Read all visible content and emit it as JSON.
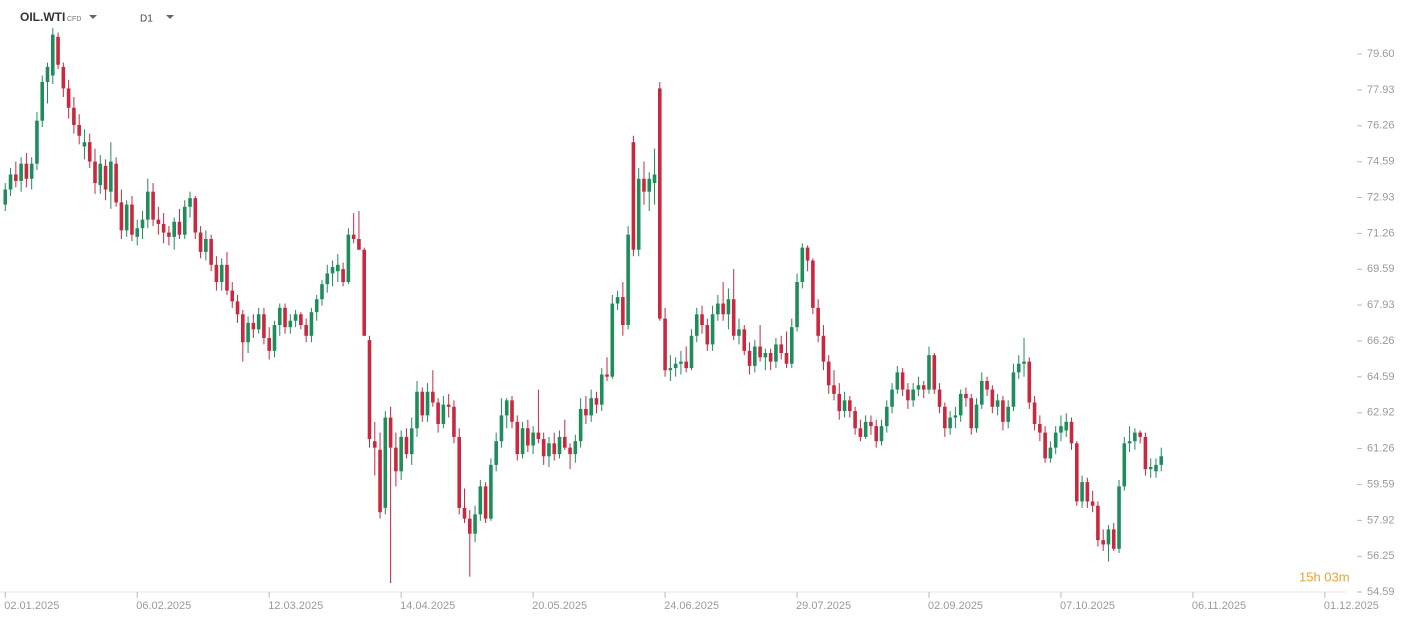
{
  "chart_data": {
    "type": "candlestick",
    "symbol": "OIL.WTI",
    "instrument": "CFD",
    "timeframe": "D1",
    "countdown": "15h 03m",
    "up_color": "#1f8c5c",
    "down_color": "#c9283e",
    "xlim": [
      -1,
      254
    ],
    "xticks": [
      {
        "value": 0,
        "label": "02.01.2025"
      },
      {
        "value": 25,
        "label": "06.02.2025"
      },
      {
        "value": 50,
        "label": "12.03.2025"
      },
      {
        "value": 75,
        "label": "14.04.2025"
      },
      {
        "value": 100,
        "label": "20.05.2025"
      },
      {
        "value": 125,
        "label": "24.06.2025"
      },
      {
        "value": 150,
        "label": "29.07.2025"
      },
      {
        "value": 175,
        "label": "02.09.2025"
      },
      {
        "value": 200,
        "label": "07.10.2025"
      },
      {
        "value": 225,
        "label": "06.11.2025"
      },
      {
        "value": 250,
        "label": "01.12.2025"
      }
    ],
    "ylim": [
      54.59,
      82.11
    ],
    "yticks": [
      {
        "value": 79.6,
        "label": "79.60"
      },
      77.93,
      76.26,
      74.59,
      72.93,
      71.26,
      69.59,
      67.93,
      66.26,
      64.59,
      62.92,
      61.26,
      59.59,
      57.92,
      56.25,
      54.59
    ],
    "ohlc": [
      [
        72.6,
        73.6,
        72.3,
        73.3
      ],
      [
        73.3,
        74.3,
        73.0,
        74.0
      ],
      [
        74.0,
        74.6,
        73.4,
        73.7
      ],
      [
        73.7,
        74.8,
        73.2,
        74.5
      ],
      [
        74.5,
        75.0,
        73.4,
        73.8
      ],
      [
        73.8,
        74.8,
        73.3,
        74.5
      ],
      [
        74.5,
        76.9,
        74.2,
        76.5
      ],
      [
        76.5,
        78.6,
        76.2,
        78.3
      ],
      [
        78.3,
        79.2,
        77.3,
        79.0
      ],
      [
        78.6,
        80.8,
        78.2,
        80.5
      ],
      [
        80.4,
        80.6,
        78.9,
        79.1
      ],
      [
        79.0,
        79.2,
        77.6,
        78.0
      ],
      [
        78.0,
        78.4,
        76.6,
        77.1
      ],
      [
        77.1,
        77.6,
        75.9,
        76.3
      ],
      [
        76.3,
        76.8,
        75.4,
        75.8
      ],
      [
        75.3,
        76.1,
        74.7,
        75.5
      ],
      [
        75.5,
        75.9,
        74.3,
        74.6
      ],
      [
        74.6,
        75.2,
        73.1,
        73.6
      ],
      [
        73.5,
        74.9,
        73.1,
        74.5
      ],
      [
        74.4,
        74.7,
        72.8,
        73.3
      ],
      [
        73.2,
        75.5,
        72.4,
        74.6
      ],
      [
        74.5,
        74.8,
        72.5,
        72.7
      ],
      [
        72.7,
        73.3,
        71.0,
        71.4
      ],
      [
        71.4,
        72.8,
        71.1,
        72.6
      ],
      [
        72.6,
        73.0,
        70.9,
        71.2
      ],
      [
        71.1,
        71.9,
        70.7,
        71.5
      ],
      [
        71.5,
        72.3,
        71.0,
        71.9
      ],
      [
        71.9,
        73.8,
        71.5,
        73.2
      ],
      [
        73.2,
        73.6,
        71.6,
        71.9
      ],
      [
        71.9,
        72.5,
        71.2,
        71.7
      ],
      [
        71.7,
        72.2,
        70.8,
        71.3
      ],
      [
        71.3,
        71.6,
        70.7,
        71.1
      ],
      [
        71.1,
        72.0,
        70.5,
        71.8
      ],
      [
        71.8,
        72.4,
        71.0,
        71.2
      ],
      [
        71.2,
        72.8,
        71.0,
        72.5
      ],
      [
        72.5,
        73.2,
        72.0,
        72.9
      ],
      [
        72.9,
        73.0,
        71.0,
        71.3
      ],
      [
        71.3,
        71.6,
        70.1,
        70.4
      ],
      [
        70.4,
        71.4,
        70.0,
        71.0
      ],
      [
        71.0,
        71.2,
        69.5,
        69.8
      ],
      [
        69.8,
        70.2,
        68.6,
        69.0
      ],
      [
        69.0,
        70.1,
        68.6,
        69.8
      ],
      [
        69.8,
        70.4,
        68.4,
        68.6
      ],
      [
        68.6,
        69.0,
        67.8,
        68.1
      ],
      [
        68.1,
        68.4,
        67.1,
        67.5
      ],
      [
        67.5,
        67.7,
        65.3,
        66.2
      ],
      [
        66.2,
        67.4,
        65.7,
        67.1
      ],
      [
        67.1,
        67.5,
        66.4,
        66.8
      ],
      [
        66.8,
        67.8,
        66.6,
        67.5
      ],
      [
        67.5,
        67.8,
        66.1,
        66.4
      ],
      [
        66.4,
        66.9,
        65.4,
        65.8
      ],
      [
        65.8,
        67.2,
        65.5,
        67.0
      ],
      [
        67.0,
        68.0,
        66.5,
        67.8
      ],
      [
        67.8,
        68.0,
        66.6,
        66.9
      ],
      [
        66.9,
        67.5,
        66.6,
        67.2
      ],
      [
        67.2,
        67.7,
        66.9,
        67.5
      ],
      [
        67.5,
        67.6,
        66.8,
        67.0
      ],
      [
        67.0,
        67.3,
        66.2,
        66.5
      ],
      [
        66.5,
        67.8,
        66.2,
        67.6
      ],
      [
        67.6,
        68.4,
        67.2,
        68.2
      ],
      [
        68.2,
        69.1,
        67.9,
        68.9
      ],
      [
        68.9,
        69.8,
        68.5,
        69.4
      ],
      [
        69.4,
        70.0,
        68.8,
        69.7
      ],
      [
        69.5,
        70.3,
        69.0,
        69.8
      ],
      [
        69.6,
        69.9,
        68.8,
        69.0
      ],
      [
        69.0,
        71.5,
        68.9,
        71.2
      ],
      [
        71.2,
        72.2,
        70.8,
        71.0
      ],
      [
        71.0,
        72.3,
        70.5,
        70.5
      ],
      [
        70.5,
        70.6,
        66.5,
        66.5
      ],
      [
        66.3,
        66.5,
        61.3,
        61.7
      ],
      [
        61.6,
        62.5,
        60.0,
        61.3
      ],
      [
        61.2,
        62.0,
        58.0,
        58.3
      ],
      [
        58.5,
        63.0,
        58.2,
        62.7
      ],
      [
        62.7,
        63.2,
        55.0,
        61.3
      ],
      [
        61.3,
        62.0,
        59.5,
        60.2
      ],
      [
        60.2,
        62.1,
        59.8,
        61.8
      ],
      [
        61.8,
        62.2,
        60.8,
        61.0
      ],
      [
        61.0,
        62.7,
        60.5,
        62.2
      ],
      [
        62.2,
        64.4,
        61.8,
        63.9
      ],
      [
        63.9,
        64.1,
        62.5,
        62.8
      ],
      [
        62.8,
        64.3,
        62.5,
        63.9
      ],
      [
        63.9,
        64.9,
        63.2,
        63.4
      ],
      [
        63.4,
        63.6,
        62.0,
        62.4
      ],
      [
        62.4,
        63.7,
        62.2,
        63.3
      ],
      [
        63.3,
        63.8,
        62.7,
        63.2
      ],
      [
        63.2,
        63.5,
        61.5,
        61.8
      ],
      [
        61.8,
        62.2,
        58.2,
        58.5
      ],
      [
        58.5,
        59.4,
        57.8,
        58.0
      ],
      [
        58.0,
        58.4,
        55.3,
        57.3
      ],
      [
        57.3,
        58.6,
        56.9,
        58.2
      ],
      [
        58.2,
        59.8,
        57.9,
        59.5
      ],
      [
        59.5,
        59.7,
        57.8,
        58.0
      ],
      [
        58.0,
        60.8,
        57.9,
        60.5
      ],
      [
        60.5,
        62.0,
        60.2,
        61.6
      ],
      [
        61.6,
        63.6,
        61.3,
        62.8
      ],
      [
        62.8,
        63.6,
        62.2,
        63.5
      ],
      [
        63.5,
        63.7,
        62.2,
        62.5
      ],
      [
        62.5,
        62.8,
        60.7,
        61.0
      ],
      [
        61.0,
        62.5,
        60.8,
        62.2
      ],
      [
        62.2,
        62.6,
        61.1,
        61.4
      ],
      [
        61.4,
        62.3,
        61.0,
        62.0
      ],
      [
        62.0,
        64.0,
        61.5,
        61.7
      ],
      [
        61.7,
        62.0,
        60.5,
        60.9
      ],
      [
        60.9,
        61.8,
        60.4,
        61.5
      ],
      [
        61.5,
        62.0,
        60.7,
        61.0
      ],
      [
        61.0,
        62.1,
        60.8,
        61.8
      ],
      [
        61.8,
        62.6,
        61.2,
        61.3
      ],
      [
        61.3,
        61.5,
        60.3,
        61.0
      ],
      [
        61.0,
        61.9,
        60.6,
        61.6
      ],
      [
        61.6,
        63.6,
        61.3,
        63.1
      ],
      [
        63.1,
        63.7,
        62.4,
        62.8
      ],
      [
        62.8,
        64.0,
        62.5,
        63.6
      ],
      [
        63.6,
        63.9,
        62.9,
        63.3
      ],
      [
        63.3,
        65.0,
        63.0,
        64.7
      ],
      [
        64.7,
        65.5,
        64.4,
        64.6
      ],
      [
        64.6,
        68.4,
        64.5,
        68.0
      ],
      [
        68.0,
        68.6,
        67.7,
        68.3
      ],
      [
        68.3,
        69.0,
        66.5,
        67.0
      ],
      [
        67.0,
        71.6,
        66.8,
        71.2
      ],
      [
        75.5,
        75.8,
        70.2,
        70.5
      ],
      [
        70.5,
        74.3,
        70.2,
        73.8
      ],
      [
        73.8,
        74.6,
        72.6,
        73.2
      ],
      [
        73.2,
        74.1,
        72.3,
        73.8
      ],
      [
        73.6,
        75.2,
        72.6,
        74.0
      ],
      [
        78.0,
        78.3,
        67.2,
        67.3
      ],
      [
        67.3,
        67.8,
        64.6,
        64.9
      ],
      [
        64.9,
        65.6,
        64.4,
        65.0
      ],
      [
        65.0,
        65.5,
        64.6,
        65.2
      ],
      [
        65.2,
        65.8,
        64.7,
        65.3
      ],
      [
        65.3,
        66.0,
        64.8,
        65.0
      ],
      [
        65.0,
        66.8,
        64.9,
        66.5
      ],
      [
        66.5,
        67.8,
        66.2,
        67.5
      ],
      [
        67.5,
        67.9,
        66.6,
        67.0
      ],
      [
        67.0,
        67.3,
        65.8,
        66.1
      ],
      [
        66.1,
        67.9,
        65.8,
        67.5
      ],
      [
        67.5,
        68.4,
        67.2,
        68.0
      ],
      [
        68.0,
        69.0,
        67.2,
        67.5
      ],
      [
        67.5,
        68.7,
        66.8,
        68.2
      ],
      [
        68.2,
        69.6,
        66.3,
        66.5
      ],
      [
        66.5,
        67.3,
        66.1,
        66.8
      ],
      [
        66.8,
        67.0,
        65.6,
        65.8
      ],
      [
        65.8,
        66.2,
        64.7,
        65.1
      ],
      [
        65.1,
        66.3,
        64.8,
        66.0
      ],
      [
        66.0,
        67.0,
        65.3,
        65.5
      ],
      [
        65.5,
        65.9,
        64.9,
        65.7
      ],
      [
        65.7,
        65.9,
        64.9,
        65.3
      ],
      [
        65.3,
        66.4,
        65.0,
        66.1
      ],
      [
        66.1,
        66.5,
        65.4,
        65.7
      ],
      [
        65.7,
        66.7,
        65.0,
        65.2
      ],
      [
        65.2,
        67.3,
        65.0,
        66.9
      ],
      [
        66.9,
        69.4,
        66.7,
        69.0
      ],
      [
        69.0,
        70.8,
        68.7,
        70.6
      ],
      [
        70.6,
        70.7,
        69.5,
        70.0
      ],
      [
        70.0,
        70.1,
        67.5,
        67.8
      ],
      [
        67.8,
        68.2,
        66.2,
        66.5
      ],
      [
        66.5,
        67.0,
        64.9,
        65.3
      ],
      [
        65.3,
        65.6,
        63.8,
        64.2
      ],
      [
        64.2,
        64.9,
        63.5,
        63.8
      ],
      [
        63.8,
        64.3,
        62.6,
        63.0
      ],
      [
        63.0,
        63.9,
        62.7,
        63.5
      ],
      [
        63.5,
        63.7,
        62.7,
        63.0
      ],
      [
        63.0,
        63.2,
        61.9,
        62.2
      ],
      [
        62.2,
        62.6,
        61.6,
        61.8
      ],
      [
        61.8,
        62.8,
        61.7,
        62.5
      ],
      [
        62.5,
        62.8,
        61.9,
        62.3
      ],
      [
        62.3,
        62.6,
        61.3,
        61.6
      ],
      [
        61.6,
        62.6,
        61.4,
        62.3
      ],
      [
        62.3,
        63.5,
        62.0,
        63.2
      ],
      [
        63.2,
        64.3,
        62.9,
        64.0
      ],
      [
        64.0,
        65.1,
        63.8,
        64.8
      ],
      [
        64.8,
        65.0,
        63.7,
        64.0
      ],
      [
        64.0,
        64.3,
        63.1,
        63.5
      ],
      [
        63.5,
        64.3,
        63.2,
        64.0
      ],
      [
        64.0,
        64.6,
        63.7,
        64.2
      ],
      [
        64.2,
        64.4,
        63.6,
        64.0
      ],
      [
        64.0,
        66.0,
        63.8,
        65.6
      ],
      [
        65.6,
        65.7,
        63.8,
        64.0
      ],
      [
        64.0,
        64.3,
        62.9,
        63.2
      ],
      [
        63.2,
        63.4,
        61.8,
        62.2
      ],
      [
        62.2,
        63.0,
        61.9,
        62.7
      ],
      [
        62.7,
        63.2,
        62.2,
        62.8
      ],
      [
        62.8,
        64.0,
        62.5,
        63.8
      ],
      [
        63.8,
        64.1,
        63.2,
        63.6
      ],
      [
        63.6,
        63.8,
        61.9,
        62.2
      ],
      [
        62.2,
        63.6,
        62.0,
        63.3
      ],
      [
        63.3,
        64.8,
        63.1,
        64.4
      ],
      [
        64.4,
        64.6,
        63.7,
        64.0
      ],
      [
        64.0,
        64.2,
        62.9,
        63.2
      ],
      [
        63.2,
        63.8,
        62.8,
        63.5
      ],
      [
        63.5,
        63.7,
        62.1,
        62.5
      ],
      [
        62.5,
        63.5,
        62.2,
        63.2
      ],
      [
        63.2,
        65.2,
        63.0,
        64.8
      ],
      [
        64.8,
        65.6,
        64.5,
        65.2
      ],
      [
        65.2,
        66.4,
        64.6,
        65.3
      ],
      [
        65.3,
        65.5,
        63.1,
        63.4
      ],
      [
        63.4,
        63.7,
        62.1,
        62.4
      ],
      [
        62.4,
        62.8,
        61.6,
        62.0
      ],
      [
        62.0,
        62.3,
        60.6,
        60.8
      ],
      [
        60.8,
        61.6,
        60.6,
        61.3
      ],
      [
        61.3,
        62.3,
        61.0,
        62.0
      ],
      [
        62.0,
        62.8,
        61.6,
        62.3
      ],
      [
        62.1,
        62.9,
        61.8,
        62.5
      ],
      [
        62.5,
        62.7,
        61.2,
        61.5
      ],
      [
        61.5,
        61.6,
        58.6,
        58.8
      ],
      [
        58.8,
        60.0,
        58.5,
        59.7
      ],
      [
        59.7,
        59.9,
        58.5,
        58.8
      ],
      [
        58.8,
        59.3,
        58.3,
        58.6
      ],
      [
        58.6,
        58.8,
        56.7,
        57.0
      ],
      [
        57.0,
        57.5,
        56.5,
        56.8
      ],
      [
        56.8,
        57.7,
        56.0,
        57.5
      ],
      [
        57.5,
        57.8,
        56.5,
        56.6
      ],
      [
        56.6,
        59.8,
        56.4,
        59.5
      ],
      [
        59.5,
        61.8,
        59.3,
        61.5
      ],
      [
        61.5,
        62.3,
        61.1,
        61.6
      ],
      [
        61.6,
        62.2,
        61.2,
        62.0
      ],
      [
        62.0,
        62.1,
        61.5,
        61.8
      ],
      [
        61.8,
        62.0,
        60.0,
        60.3
      ],
      [
        60.3,
        60.8,
        59.9,
        60.4
      ],
      [
        60.2,
        60.8,
        59.9,
        60.5
      ],
      [
        60.5,
        61.3,
        60.2,
        60.9
      ]
    ]
  }
}
